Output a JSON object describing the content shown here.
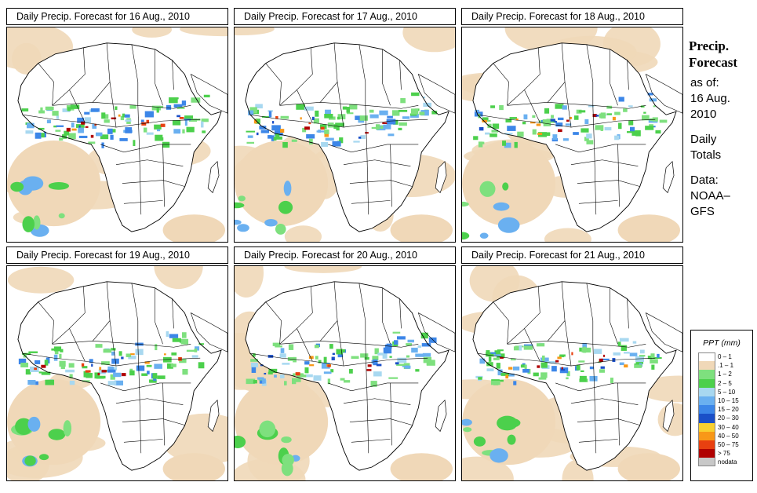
{
  "panels": [
    {
      "title": "Daily Precip. Forecast for  16 Aug., 2010"
    },
    {
      "title": "Daily Precip. Forecast for  17 Aug., 2010"
    },
    {
      "title": "Daily Precip. Forecast for  18 Aug., 2010"
    },
    {
      "title": "Daily Precip. Forecast for  19 Aug., 2010"
    },
    {
      "title": "Daily Precip. Forecast for  20 Aug., 2010"
    },
    {
      "title": "Daily Precip. Forecast for  21 Aug., 2010"
    }
  ],
  "side": {
    "title_line1": "Precip.",
    "title_line2": "Forecast",
    "asof_label": "as of:",
    "asof_date1": "16 Aug.",
    "asof_date2": "2010",
    "totals1": "Daily",
    "totals2": "Totals",
    "data_label": "Data:",
    "data_source1": "NOAA–",
    "data_source2": "GFS"
  },
  "legend": {
    "title": "PPT (mm)",
    "items": [
      {
        "label": "0 – 1",
        "color": "#ffffff"
      },
      {
        "label": ".1 – 1",
        "color": "#f0d8b8"
      },
      {
        "label": "1 – 2",
        "color": "#7ee07e"
      },
      {
        "label": "2 – 5",
        "color": "#4cd04c"
      },
      {
        "label": "5 – 10",
        "color": "#a8d8f0"
      },
      {
        "label": "10 – 15",
        "color": "#6ab0f0"
      },
      {
        "label": "15 – 20",
        "color": "#3c86e8"
      },
      {
        "label": "20 – 30",
        "color": "#1a4fc8"
      },
      {
        "label": "30 – 40",
        "color": "#f8d030"
      },
      {
        "label": "40 – 50",
        "color": "#f89818"
      },
      {
        "label": "50 – 75",
        "color": "#e84010"
      },
      {
        "label": "> 75",
        "color": "#b00000"
      },
      {
        "label": "nodata",
        "color": "#c8c8c8"
      }
    ]
  }
}
